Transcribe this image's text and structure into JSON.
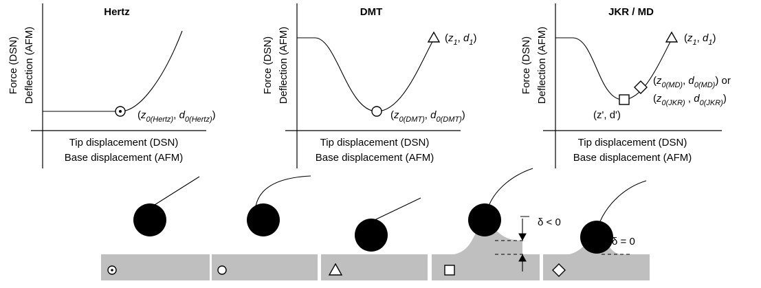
{
  "panels": [
    {
      "title": "Hertz",
      "y_labels": [
        "Force (DSN)",
        "Deflection (AFM)"
      ],
      "x_labels": [
        "Tip displacement (DSN)",
        "Base displacement (AFM)"
      ],
      "annotations": [
        [
          "(",
          "z",
          "0(Hertz)",
          ", ",
          "d",
          "0(Hertz)",
          ")"
        ]
      ]
    },
    {
      "title": "DMT",
      "y_labels": [
        "Force (DSN)",
        "Deflection (AFM)"
      ],
      "x_labels": [
        "Tip displacement (DSN)",
        "Base displacement (AFM)"
      ],
      "annotations": [
        [
          "(",
          "z",
          "1",
          ", ",
          "d",
          "1",
          ")"
        ],
        [
          "(",
          "z",
          "0(DMT)",
          ", ",
          "d",
          "0(DMT)",
          ")"
        ]
      ]
    },
    {
      "title": "JKR / MD",
      "y_labels": [
        "Force (DSN)",
        "Deflection (AFM)"
      ],
      "x_labels": [
        "Tip displacement (DSN)",
        "Base displacement (AFM)"
      ],
      "annotations": [
        [
          "(",
          "z",
          "1",
          ", ",
          "d",
          "1",
          ")"
        ],
        [
          "(",
          "z",
          "0(MD)",
          ", ",
          "d",
          "0(MD)",
          ") or"
        ],
        [
          "(",
          "z",
          "0(JKR)",
          " , ",
          "d",
          "0(JKR)",
          ")"
        ],
        [
          "(z', d')"
        ]
      ]
    }
  ],
  "schematic": {
    "labels": [
      "δ < 0",
      "δ = 0"
    ]
  }
}
